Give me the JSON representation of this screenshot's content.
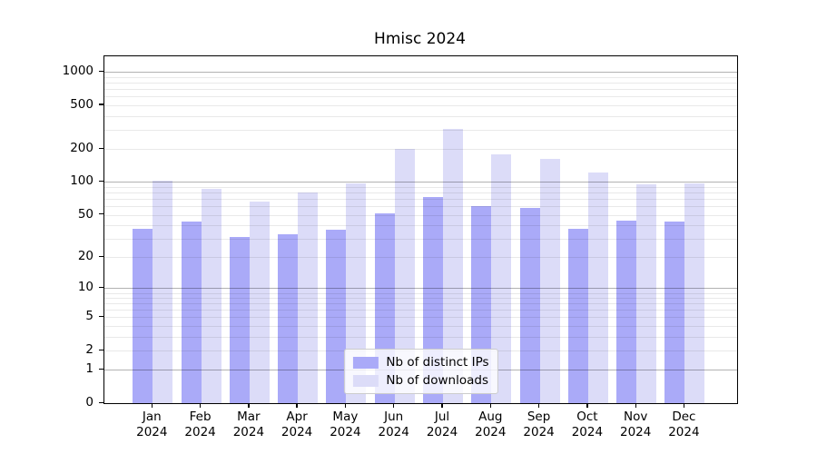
{
  "chart_data": {
    "type": "bar",
    "title": "Hmisc 2024",
    "categories": [
      "Jan",
      "Feb",
      "Mar",
      "Apr",
      "May",
      "Jun",
      "Jul",
      "Aug",
      "Sep",
      "Oct",
      "Nov",
      "Dec"
    ],
    "category_year": "2024",
    "series": [
      {
        "name": "Nb of distinct IPs",
        "color": "#aaaaf8",
        "values": [
          37,
          43,
          31,
          33,
          36,
          52,
          73,
          60,
          58,
          37,
          44,
          43
        ]
      },
      {
        "name": "Nb of downloads",
        "color": "#dcdcf8",
        "values": [
          102,
          86,
          66,
          80,
          97,
          200,
          305,
          180,
          164,
          122,
          96,
          98
        ]
      }
    ],
    "y_scale": "log10(value+1)",
    "y_ticks": [
      0,
      1,
      2,
      5,
      10,
      20,
      50,
      100,
      200,
      500,
      1000
    ],
    "ylim": [
      0,
      1390
    ],
    "grid": "both",
    "legend_position": "lower center",
    "xlabel": "",
    "ylabel": ""
  },
  "colors": {
    "major_grid": "rgba(0,0,0,0.30)",
    "minor_grid": "rgba(0,0,0,0.085)",
    "spine": "#000000",
    "background": "#ffffff"
  }
}
